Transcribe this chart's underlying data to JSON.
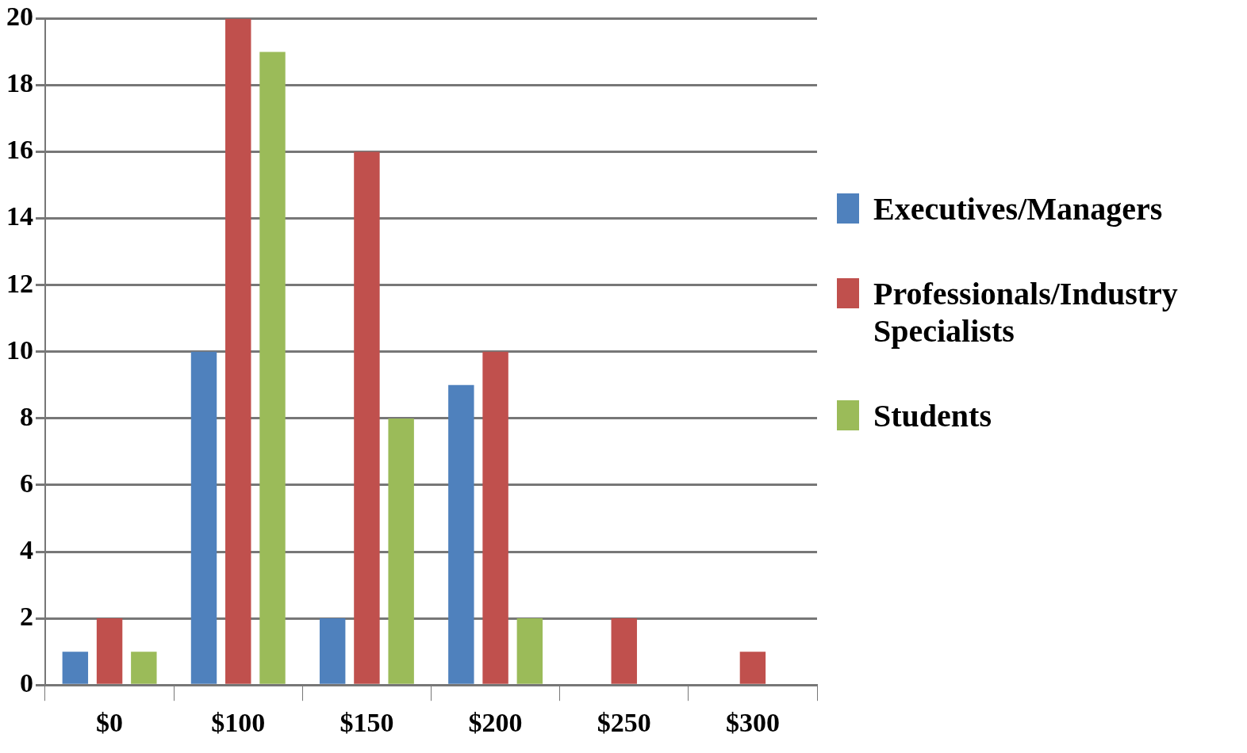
{
  "chart_data": {
    "type": "bar",
    "categories": [
      "$0",
      "$100",
      "$150",
      "$200",
      "$250",
      "$300"
    ],
    "series": [
      {
        "name": "Executives/Managers",
        "color": "#4f81bd",
        "values": [
          1,
          10,
          2,
          9,
          0,
          0
        ]
      },
      {
        "name": "Professionals/Industry Specialists",
        "color": "#c0504d",
        "values": [
          2,
          20,
          16,
          10,
          2,
          1
        ]
      },
      {
        "name": "Students",
        "color": "#9bbb59",
        "values": [
          1,
          19,
          8,
          2,
          0,
          0
        ]
      }
    ],
    "ylim": [
      0,
      20
    ],
    "yticks": [
      0,
      2,
      4,
      6,
      8,
      10,
      12,
      14,
      16,
      18,
      20
    ],
    "grid": "y",
    "legend": "right"
  }
}
